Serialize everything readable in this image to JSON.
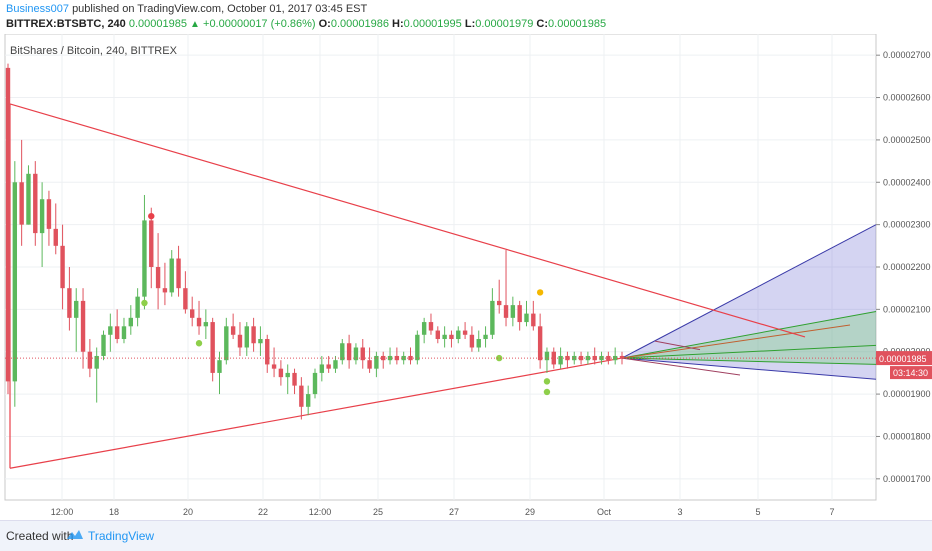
{
  "header": {
    "user": "Business007",
    "published_text": "published on TradingView.com, October 01, 2017 03:45 EST",
    "symbol": "BITTREX:BTSBTC, 240",
    "price": "0.00001985",
    "change": "+0.00000017 (+0.86%)",
    "o_label": "O:",
    "o_value": "0.00001986",
    "h_label": "H:",
    "h_value": "0.00001995",
    "l_label": "L:",
    "l_value": "0.00001979",
    "c_label": "C:",
    "c_value": "0.00001985"
  },
  "chart_title": "BitShares / Bitcoin, 240, BITTREX",
  "footer": {
    "created_with": "Created with",
    "brand": "TradingView"
  },
  "colors": {
    "up": "#5cb85c",
    "down": "#e0525d",
    "trend": "#e8404a",
    "fan_blue": "#3a3aa8",
    "fan_green": "#30a030",
    "fan_brown": "#c06030"
  },
  "chart_data": {
    "type": "candlestick",
    "title": "BitShares / Bitcoin, 240, BITTREX",
    "ylim": [
      1.65e-05,
      2.75e-05
    ],
    "y_ticks": [
      "0.00002700",
      "0.00002600",
      "0.00002500",
      "0.00002400",
      "0.00002300",
      "0.00002200",
      "0.00002100",
      "0.00002000",
      "0.00001900",
      "0.00001800",
      "0.00001700"
    ],
    "x_ticks": [
      "12:00",
      "18",
      "20",
      "22",
      "12:00",
      "25",
      "27",
      "29",
      "Oct",
      "3",
      "5",
      "7"
    ],
    "price_label": "0.00001985",
    "countdown_label": "03:14:30",
    "current_price": 1.985e-05,
    "candles": [
      [
        2.67,
        2.68,
        1.9,
        1.93
      ],
      [
        1.93,
        2.45,
        1.87,
        2.4
      ],
      [
        2.4,
        2.5,
        2.25,
        2.3
      ],
      [
        2.3,
        2.44,
        2.3,
        2.42
      ],
      [
        2.42,
        2.45,
        2.25,
        2.28
      ],
      [
        2.28,
        2.4,
        2.2,
        2.36
      ],
      [
        2.36,
        2.38,
        2.25,
        2.29
      ],
      [
        2.29,
        2.35,
        2.23,
        2.25
      ],
      [
        2.25,
        2.3,
        2.1,
        2.15
      ],
      [
        2.15,
        2.2,
        2.05,
        2.08
      ],
      [
        2.08,
        2.15,
        2.0,
        2.12
      ],
      [
        2.12,
        2.15,
        1.96,
        2.0
      ],
      [
        2.0,
        2.03,
        1.94,
        1.96
      ],
      [
        1.96,
        2.01,
        1.88,
        1.99
      ],
      [
        1.99,
        2.05,
        1.98,
        2.04
      ],
      [
        2.04,
        2.09,
        2.0,
        2.06
      ],
      [
        2.06,
        2.1,
        2.02,
        2.03
      ],
      [
        2.03,
        2.08,
        2.02,
        2.06
      ],
      [
        2.06,
        2.11,
        2.04,
        2.08
      ],
      [
        2.08,
        2.15,
        2.06,
        2.13
      ],
      [
        2.13,
        2.37,
        2.1,
        2.31
      ],
      [
        2.31,
        2.34,
        2.15,
        2.2
      ],
      [
        2.2,
        2.28,
        2.1,
        2.15
      ],
      [
        2.15,
        2.21,
        2.11,
        2.14
      ],
      [
        2.14,
        2.24,
        2.13,
        2.22
      ],
      [
        2.22,
        2.25,
        2.13,
        2.15
      ],
      [
        2.15,
        2.19,
        2.09,
        2.1
      ],
      [
        2.1,
        2.13,
        2.06,
        2.08
      ],
      [
        2.08,
        2.12,
        2.04,
        2.06
      ],
      [
        2.06,
        2.1,
        2.03,
        2.07
      ],
      [
        2.07,
        2.08,
        1.93,
        1.95
      ],
      [
        1.95,
        2.0,
        1.9,
        1.98
      ],
      [
        1.98,
        2.08,
        1.97,
        2.06
      ],
      [
        2.06,
        2.09,
        2.03,
        2.04
      ],
      [
        2.04,
        2.07,
        1.99,
        2.01
      ],
      [
        2.01,
        2.07,
        1.99,
        2.06
      ],
      [
        2.06,
        2.08,
        2.0,
        2.02
      ],
      [
        2.02,
        2.06,
        1.99,
        2.03
      ],
      [
        2.03,
        2.04,
        1.95,
        1.97
      ],
      [
        1.97,
        2.01,
        1.94,
        1.96
      ],
      [
        1.96,
        1.98,
        1.92,
        1.94
      ],
      [
        1.94,
        1.97,
        1.9,
        1.95
      ],
      [
        1.95,
        1.96,
        1.9,
        1.92
      ],
      [
        1.92,
        1.94,
        1.84,
        1.87
      ],
      [
        1.87,
        1.92,
        1.85,
        1.9
      ],
      [
        1.9,
        1.96,
        1.89,
        1.95
      ],
      [
        1.95,
        1.99,
        1.93,
        1.97
      ],
      [
        1.97,
        1.99,
        1.95,
        1.96
      ],
      [
        1.96,
        1.99,
        1.95,
        1.98
      ],
      [
        1.98,
        2.03,
        1.97,
        2.02
      ],
      [
        2.02,
        2.04,
        1.96,
        1.98
      ],
      [
        1.98,
        2.02,
        1.97,
        2.01
      ],
      [
        2.01,
        2.03,
        1.96,
        1.98
      ],
      [
        1.98,
        2.01,
        1.95,
        1.96
      ],
      [
        1.96,
        2.0,
        1.94,
        1.99
      ],
      [
        1.99,
        2.0,
        1.96,
        1.98
      ],
      [
        1.98,
        2.01,
        1.97,
        1.99
      ],
      [
        1.99,
        2.01,
        1.97,
        1.98
      ],
      [
        1.98,
        2.0,
        1.97,
        1.99
      ],
      [
        1.99,
        2.01,
        1.97,
        1.98
      ],
      [
        1.98,
        2.05,
        1.97,
        2.04
      ],
      [
        2.04,
        2.08,
        2.02,
        2.07
      ],
      [
        2.07,
        2.09,
        2.04,
        2.05
      ],
      [
        2.05,
        2.06,
        2.02,
        2.03
      ],
      [
        2.03,
        2.06,
        2.01,
        2.04
      ],
      [
        2.04,
        2.05,
        2.01,
        2.03
      ],
      [
        2.03,
        2.06,
        2.02,
        2.05
      ],
      [
        2.05,
        2.07,
        2.03,
        2.04
      ],
      [
        2.04,
        2.06,
        2.0,
        2.01
      ],
      [
        2.01,
        2.05,
        2.0,
        2.03
      ],
      [
        2.03,
        2.06,
        2.01,
        2.04
      ],
      [
        2.04,
        2.15,
        2.03,
        2.12
      ],
      [
        2.12,
        2.17,
        2.09,
        2.11
      ],
      [
        2.11,
        2.24,
        2.06,
        2.08
      ],
      [
        2.08,
        2.13,
        2.06,
        2.11
      ],
      [
        2.11,
        2.12,
        2.05,
        2.07
      ],
      [
        2.07,
        2.12,
        2.06,
        2.09
      ],
      [
        2.09,
        2.12,
        2.05,
        2.06
      ],
      [
        2.06,
        2.09,
        1.96,
        1.98
      ],
      [
        1.98,
        2.01,
        1.95,
        2.0
      ],
      [
        2.0,
        2.01,
        1.96,
        1.97
      ],
      [
        1.97,
        2.01,
        1.96,
        1.99
      ],
      [
        1.99,
        2.0,
        1.96,
        1.98
      ],
      [
        1.98,
        2.0,
        1.97,
        1.99
      ],
      [
        1.99,
        2.0,
        1.97,
        1.98
      ],
      [
        1.98,
        2.0,
        1.97,
        1.99
      ],
      [
        1.99,
        2.01,
        1.97,
        1.98
      ],
      [
        1.98,
        2.0,
        1.97,
        1.99
      ],
      [
        1.99,
        2.0,
        1.97,
        1.98
      ],
      [
        1.98,
        2.01,
        1.97,
        1.99
      ],
      [
        1.99,
        2.0,
        1.97,
        1.985
      ]
    ],
    "markers": [
      {
        "candle": 21,
        "price": 2.32,
        "color": "#e8404a"
      },
      {
        "candle": 20,
        "price": 2.115,
        "color": "#8ecf4a"
      },
      {
        "candle": 28,
        "price": 2.02,
        "color": "#8ecf4a"
      },
      {
        "candle": 72,
        "price": 1.985,
        "color": "#8ecf4a"
      },
      {
        "candle": 78,
        "price": 2.14,
        "color": "#f5b800"
      },
      {
        "candle": 79,
        "price": 1.93,
        "color": "#8ecf4a"
      },
      {
        "candle": 79,
        "price": 1.905,
        "color": "#8ecf4a"
      }
    ]
  }
}
